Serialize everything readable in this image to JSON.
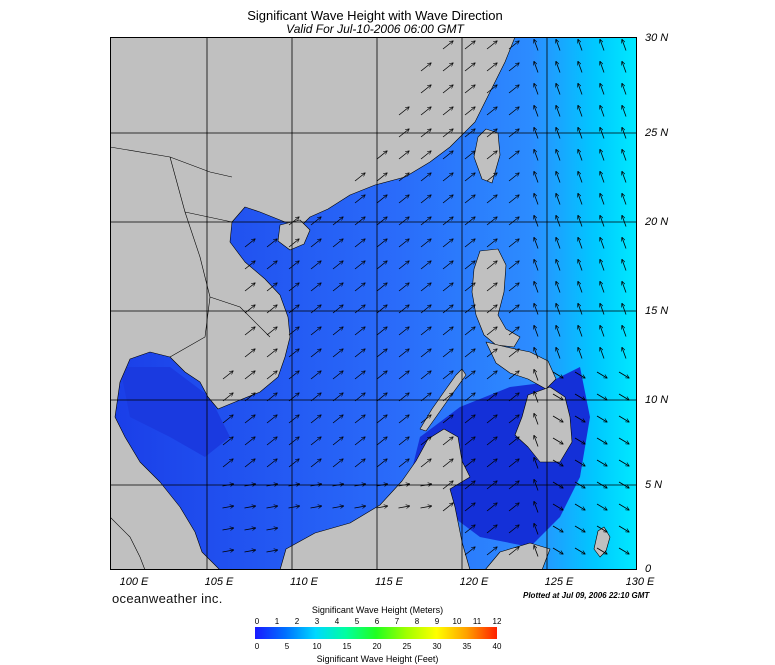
{
  "header": {
    "title": "Significant Wave Height with Wave Direction",
    "subtitle": "Valid For Jul-10-2006 06:00 GMT"
  },
  "map": {
    "lon_range": [
      99,
      130
    ],
    "lat_range": [
      0,
      30
    ],
    "lat_labels": [
      "30 N",
      "25 N",
      "20 N",
      "15 N",
      "10 N",
      "5 N",
      "0"
    ],
    "lon_labels": [
      "100 E",
      "105 E",
      "110 E",
      "115 E",
      "120 E",
      "125 E",
      "130 E"
    ],
    "colors": {
      "land": "#c0c0c0",
      "sea_low": "#1a40e8",
      "sea_mid": "#2f7cff",
      "sea_high": "#00e6ff",
      "grid": "#000000"
    },
    "wave_direction": "predominantly southwesterly (arrows pointing northeast)"
  },
  "footer": {
    "brand": "oceanweather inc.",
    "plotted": "Plotted at Jul 09, 2006 22:10 GMT"
  },
  "legend": {
    "meters_title": "Significant Wave Height (Meters)",
    "meters_ticks": [
      "0",
      "1",
      "2",
      "3",
      "4",
      "5",
      "6",
      "7",
      "8",
      "9",
      "10",
      "11",
      "12"
    ],
    "feet_title": "Significant Wave Height (Feet)",
    "feet_ticks": [
      "0",
      "5",
      "10",
      "15",
      "20",
      "25",
      "30",
      "35",
      "40"
    ],
    "gradient_colors": [
      "#1a1aff",
      "#0080ff",
      "#00e0ff",
      "#00ff80",
      "#40ff00",
      "#c0ff00",
      "#ffff00",
      "#ffa000",
      "#ff2000"
    ]
  }
}
